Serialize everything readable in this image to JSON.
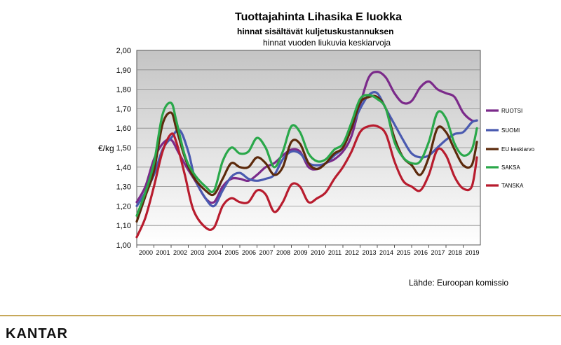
{
  "chart_data": {
    "type": "line",
    "title": "Tuottajahinta Lihasika E luokka",
    "subtitle": "hinnat sisältävät kuljetuskustannuksen",
    "subtitle2": "hinnat vuoden liukuvia keskiarvoja",
    "ylabel": "€/kg",
    "xlabel": "",
    "ylim": [
      1.0,
      2.0
    ],
    "xlim": [
      2000,
      2020
    ],
    "yticks": [
      "1,00",
      "1,10",
      "1,20",
      "1,30",
      "1,40",
      "1,50",
      "1,60",
      "1,70",
      "1,80",
      "1,90",
      "2,00"
    ],
    "xticks": [
      "2000",
      "2001",
      "2002",
      "2003",
      "2004",
      "2005",
      "2006",
      "2007",
      "2008",
      "2009",
      "2010",
      "2011",
      "2012",
      "2013",
      "2014",
      "2015",
      "2016",
      "2017",
      "2018",
      "2019"
    ],
    "legend_position": "right",
    "grid": true,
    "series": [
      {
        "name": "RUOTSI",
        "color": "#7b2a8a",
        "points": [
          [
            2000.0,
            1.22
          ],
          [
            2000.5,
            1.3
          ],
          [
            2001.0,
            1.44
          ],
          [
            2001.5,
            1.52
          ],
          [
            2002.0,
            1.54
          ],
          [
            2002.4,
            1.48
          ],
          [
            2002.9,
            1.4
          ],
          [
            2003.4,
            1.33
          ],
          [
            2004.0,
            1.24
          ],
          [
            2004.5,
            1.22
          ],
          [
            2005.0,
            1.3
          ],
          [
            2005.5,
            1.34
          ],
          [
            2006.0,
            1.34
          ],
          [
            2006.5,
            1.33
          ],
          [
            2007.0,
            1.36
          ],
          [
            2007.5,
            1.4
          ],
          [
            2008.0,
            1.42
          ],
          [
            2008.5,
            1.46
          ],
          [
            2009.0,
            1.49
          ],
          [
            2009.5,
            1.48
          ],
          [
            2010.0,
            1.4
          ],
          [
            2010.5,
            1.39
          ],
          [
            2011.0,
            1.42
          ],
          [
            2011.5,
            1.44
          ],
          [
            2012.0,
            1.48
          ],
          [
            2012.5,
            1.56
          ],
          [
            2013.0,
            1.72
          ],
          [
            2013.5,
            1.86
          ],
          [
            2014.0,
            1.89
          ],
          [
            2014.5,
            1.86
          ],
          [
            2015.0,
            1.78
          ],
          [
            2015.5,
            1.73
          ],
          [
            2016.0,
            1.74
          ],
          [
            2016.5,
            1.81
          ],
          [
            2017.0,
            1.84
          ],
          [
            2017.5,
            1.8
          ],
          [
            2018.0,
            1.78
          ],
          [
            2018.5,
            1.76
          ],
          [
            2019.0,
            1.68
          ],
          [
            2019.5,
            1.64
          ],
          [
            2019.8,
            1.64
          ]
        ]
      },
      {
        "name": "SUOMI",
        "color": "#4a5ab0",
        "points": [
          [
            2000.0,
            1.2
          ],
          [
            2000.5,
            1.27
          ],
          [
            2001.0,
            1.36
          ],
          [
            2001.5,
            1.49
          ],
          [
            2002.0,
            1.55
          ],
          [
            2002.5,
            1.59
          ],
          [
            2003.0,
            1.48
          ],
          [
            2003.4,
            1.34
          ],
          [
            2004.0,
            1.24
          ],
          [
            2004.5,
            1.2
          ],
          [
            2005.0,
            1.28
          ],
          [
            2005.5,
            1.35
          ],
          [
            2006.0,
            1.37
          ],
          [
            2006.5,
            1.34
          ],
          [
            2007.0,
            1.33
          ],
          [
            2007.5,
            1.34
          ],
          [
            2008.0,
            1.36
          ],
          [
            2008.5,
            1.44
          ],
          [
            2009.0,
            1.48
          ],
          [
            2009.5,
            1.47
          ],
          [
            2010.0,
            1.42
          ],
          [
            2010.5,
            1.41
          ],
          [
            2011.0,
            1.42
          ],
          [
            2011.5,
            1.46
          ],
          [
            2012.0,
            1.5
          ],
          [
            2012.5,
            1.6
          ],
          [
            2013.0,
            1.7
          ],
          [
            2013.5,
            1.77
          ],
          [
            2014.0,
            1.78
          ],
          [
            2014.5,
            1.7
          ],
          [
            2015.0,
            1.62
          ],
          [
            2015.5,
            1.54
          ],
          [
            2016.0,
            1.47
          ],
          [
            2016.5,
            1.45
          ],
          [
            2017.0,
            1.46
          ],
          [
            2017.5,
            1.5
          ],
          [
            2018.0,
            1.54
          ],
          [
            2018.5,
            1.57
          ],
          [
            2019.0,
            1.58
          ],
          [
            2019.5,
            1.63
          ],
          [
            2019.8,
            1.64
          ]
        ]
      },
      {
        "name": "EU keskiarvo",
        "color": "#5c2a0c",
        "points": [
          [
            2000.0,
            1.12
          ],
          [
            2000.5,
            1.25
          ],
          [
            2001.0,
            1.38
          ],
          [
            2001.5,
            1.62
          ],
          [
            2002.0,
            1.68
          ],
          [
            2002.3,
            1.6
          ],
          [
            2002.8,
            1.45
          ],
          [
            2003.3,
            1.35
          ],
          [
            2004.0,
            1.28
          ],
          [
            2004.5,
            1.26
          ],
          [
            2005.0,
            1.34
          ],
          [
            2005.5,
            1.42
          ],
          [
            2006.0,
            1.4
          ],
          [
            2006.5,
            1.4
          ],
          [
            2007.0,
            1.45
          ],
          [
            2007.5,
            1.42
          ],
          [
            2008.0,
            1.36
          ],
          [
            2008.5,
            1.4
          ],
          [
            2009.0,
            1.53
          ],
          [
            2009.5,
            1.52
          ],
          [
            2010.0,
            1.42
          ],
          [
            2010.5,
            1.39
          ],
          [
            2011.0,
            1.42
          ],
          [
            2011.5,
            1.47
          ],
          [
            2012.0,
            1.5
          ],
          [
            2012.5,
            1.6
          ],
          [
            2013.0,
            1.73
          ],
          [
            2013.5,
            1.76
          ],
          [
            2014.0,
            1.76
          ],
          [
            2014.5,
            1.7
          ],
          [
            2015.0,
            1.55
          ],
          [
            2015.5,
            1.45
          ],
          [
            2016.0,
            1.41
          ],
          [
            2016.5,
            1.36
          ],
          [
            2017.0,
            1.45
          ],
          [
            2017.5,
            1.6
          ],
          [
            2018.0,
            1.58
          ],
          [
            2018.5,
            1.49
          ],
          [
            2019.0,
            1.41
          ],
          [
            2019.5,
            1.41
          ],
          [
            2019.8,
            1.53
          ]
        ]
      },
      {
        "name": "SAKSA",
        "color": "#2aa84a",
        "points": [
          [
            2000.0,
            1.15
          ],
          [
            2000.5,
            1.27
          ],
          [
            2001.0,
            1.42
          ],
          [
            2001.5,
            1.67
          ],
          [
            2002.0,
            1.73
          ],
          [
            2002.3,
            1.64
          ],
          [
            2002.8,
            1.46
          ],
          [
            2003.3,
            1.37
          ],
          [
            2004.0,
            1.3
          ],
          [
            2004.5,
            1.28
          ],
          [
            2005.0,
            1.43
          ],
          [
            2005.5,
            1.5
          ],
          [
            2006.0,
            1.47
          ],
          [
            2006.5,
            1.48
          ],
          [
            2007.0,
            1.55
          ],
          [
            2007.5,
            1.5
          ],
          [
            2008.0,
            1.4
          ],
          [
            2008.5,
            1.48
          ],
          [
            2009.0,
            1.61
          ],
          [
            2009.5,
            1.58
          ],
          [
            2010.0,
            1.47
          ],
          [
            2010.5,
            1.43
          ],
          [
            2011.0,
            1.44
          ],
          [
            2011.5,
            1.49
          ],
          [
            2012.0,
            1.52
          ],
          [
            2012.5,
            1.63
          ],
          [
            2013.0,
            1.75
          ],
          [
            2013.5,
            1.77
          ],
          [
            2014.0,
            1.75
          ],
          [
            2014.5,
            1.7
          ],
          [
            2015.0,
            1.53
          ],
          [
            2015.5,
            1.45
          ],
          [
            2016.0,
            1.42
          ],
          [
            2016.5,
            1.43
          ],
          [
            2017.0,
            1.53
          ],
          [
            2017.5,
            1.68
          ],
          [
            2018.0,
            1.65
          ],
          [
            2018.5,
            1.52
          ],
          [
            2019.0,
            1.46
          ],
          [
            2019.5,
            1.49
          ],
          [
            2019.8,
            1.6
          ]
        ]
      },
      {
        "name": "TANSKA",
        "color": "#b81c2e",
        "points": [
          [
            2000.0,
            1.04
          ],
          [
            2000.5,
            1.14
          ],
          [
            2001.0,
            1.3
          ],
          [
            2001.5,
            1.48
          ],
          [
            2002.0,
            1.57
          ],
          [
            2002.3,
            1.53
          ],
          [
            2002.8,
            1.36
          ],
          [
            2003.3,
            1.18
          ],
          [
            2004.0,
            1.09
          ],
          [
            2004.5,
            1.09
          ],
          [
            2005.0,
            1.2
          ],
          [
            2005.5,
            1.24
          ],
          [
            2006.0,
            1.22
          ],
          [
            2006.5,
            1.22
          ],
          [
            2007.0,
            1.28
          ],
          [
            2007.5,
            1.26
          ],
          [
            2008.0,
            1.17
          ],
          [
            2008.5,
            1.22
          ],
          [
            2009.0,
            1.31
          ],
          [
            2009.5,
            1.3
          ],
          [
            2010.0,
            1.22
          ],
          [
            2010.5,
            1.24
          ],
          [
            2011.0,
            1.27
          ],
          [
            2011.5,
            1.34
          ],
          [
            2012.0,
            1.4
          ],
          [
            2012.5,
            1.48
          ],
          [
            2013.0,
            1.58
          ],
          [
            2013.5,
            1.61
          ],
          [
            2014.0,
            1.61
          ],
          [
            2014.5,
            1.57
          ],
          [
            2015.0,
            1.43
          ],
          [
            2015.5,
            1.33
          ],
          [
            2016.0,
            1.3
          ],
          [
            2016.5,
            1.28
          ],
          [
            2017.0,
            1.36
          ],
          [
            2017.5,
            1.49
          ],
          [
            2018.0,
            1.46
          ],
          [
            2018.5,
            1.35
          ],
          [
            2019.0,
            1.29
          ],
          [
            2019.5,
            1.3
          ],
          [
            2019.8,
            1.45
          ]
        ]
      }
    ]
  },
  "source": "Lähde: Euroopan komissio",
  "brand": "KANTAR",
  "colors": {
    "plot_top": "#c8c8c8",
    "plot_bottom": "#ffffff",
    "grid": "#8a8a8a",
    "divider": "#c7a85a"
  }
}
